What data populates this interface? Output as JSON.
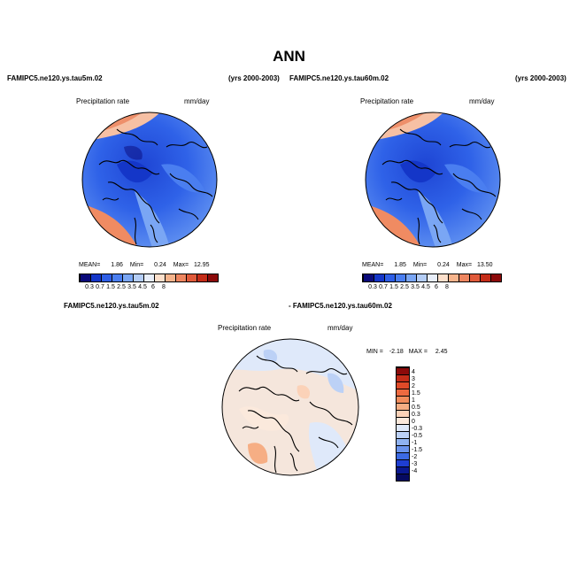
{
  "main_title": "ANN",
  "panels": [
    {
      "case_name": "FAMIPC5.ne120.ys.tau5m.02",
      "years": "(yrs 2000-2003)",
      "field": "Precipitation rate",
      "units": "mm/day",
      "mean_label": "MEAN=",
      "mean": "1.86",
      "min_label": "Min=",
      "min": "0.24",
      "max_label": "Max=",
      "max": "12.95",
      "colorbar_ticks": [
        "0.3",
        "0.7",
        "1.5",
        "2.5",
        "3.5",
        "4.5",
        "6",
        "8"
      ]
    },
    {
      "case_name": "FAMIPC5.ne120.ys.tau60m.02",
      "years": "(yrs 2000-2003)",
      "field": "Precipitation rate",
      "units": "mm/day",
      "mean_label": "MEAN=",
      "mean": "1.85",
      "min_label": "Min=",
      "min": "0.24",
      "max_label": "Max=",
      "max": "13.50",
      "colorbar_ticks": [
        "0.3",
        "0.7",
        "1.5",
        "2.5",
        "3.5",
        "4.5",
        "6",
        "8"
      ]
    }
  ],
  "diff": {
    "case_left": "FAMIPC5.ne120.ys.tau5m.02",
    "case_right": "- FAMIPC5.ne120.ys.tau60m.02",
    "field": "Precipitation rate",
    "units": "mm/day",
    "min_label": "MIN =",
    "min": "-2.18",
    "max_label": "MAX =",
    "max": "2.45",
    "colorbar_ticks": [
      "4",
      "3",
      "2",
      "1.5",
      "1",
      "0.5",
      "0.3",
      "0",
      "-0.3",
      "-0.5",
      "-1",
      "-1.5",
      "-2",
      "-3",
      "-4"
    ]
  },
  "colors": {
    "precip_scale": [
      "#0a0a7a",
      "#1436c8",
      "#2e5ee6",
      "#4a7ef0",
      "#7aa6f4",
      "#b4cdf6",
      "#e8eefa",
      "#fde0cc",
      "#f6b48c",
      "#ee8660",
      "#e05a3a",
      "#c42c18",
      "#8c0a0a"
    ],
    "diff_scale": [
      "#8c0a0a",
      "#c42c18",
      "#e04a28",
      "#ee6a40",
      "#f28c5c",
      "#f6ae84",
      "#fbd2b8",
      "#fbe9dc",
      "#dfe9fa",
      "#bcd1f6",
      "#8fb2f0",
      "#6a93ec",
      "#3c6ae4",
      "#1e3ed2",
      "#0a1890",
      "#060a60"
    ]
  }
}
